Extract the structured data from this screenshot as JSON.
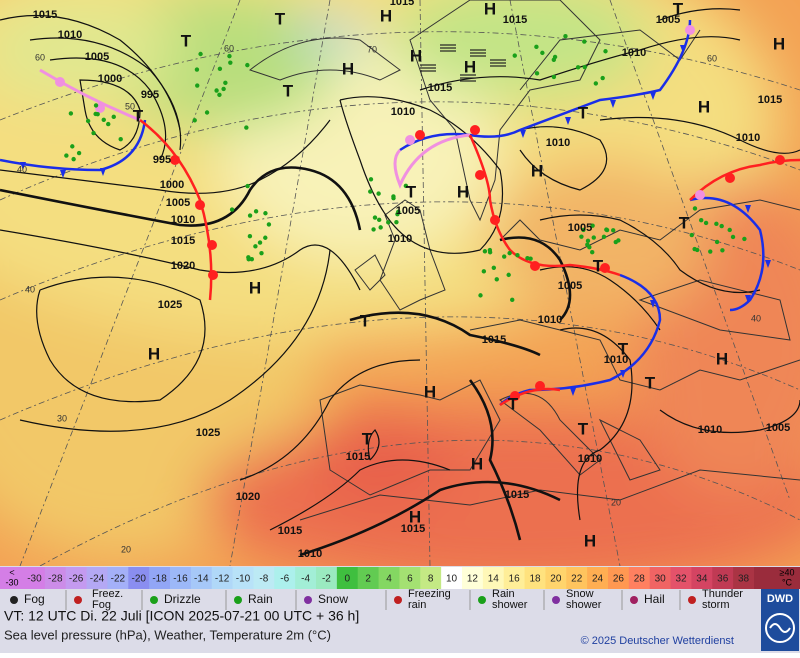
{
  "pressure_labels": [
    "1015",
    "1010",
    "1005",
    "1000",
    "995",
    "995",
    "1000",
    "1005",
    "1010",
    "1015",
    "1020",
    "1025",
    "1025",
    "1020",
    "1015",
    "1010",
    "1015",
    "1015",
    "1015",
    "1010",
    "1010",
    "1005",
    "1015",
    "1010",
    "1010",
    "1005",
    "1005",
    "1010",
    "1010",
    "1005",
    "1015",
    "1010",
    "1010",
    "1005",
    "1010",
    "1015",
    "1015",
    "1015"
  ],
  "system_labels": [
    "H",
    "H",
    "H",
    "H",
    "H",
    "T",
    "T",
    "T",
    "T",
    "H",
    "H",
    "T",
    "H",
    "H",
    "T",
    "H",
    "H",
    "T",
    "H",
    "T",
    "T",
    "T",
    "T",
    "H",
    "H",
    "T",
    "T",
    "T",
    "H",
    "H",
    "T"
  ],
  "latitude_labels": [
    "60",
    "60",
    "70",
    "60",
    "50",
    "40",
    "40",
    "30",
    "20",
    "40",
    "20"
  ],
  "scale": {
    "low_top": "<",
    "low_bottom": "-30",
    "values": [
      -30,
      -28,
      -26,
      -24,
      -22,
      -20,
      -18,
      -16,
      -14,
      -12,
      -10,
      -8,
      -6,
      -4,
      -2,
      0,
      2,
      4,
      6,
      8,
      10,
      12,
      14,
      16,
      18,
      20,
      22,
      24,
      26,
      28,
      30,
      32,
      34,
      36,
      38
    ],
    "colors": [
      "#d47ee6",
      "#cc8ce8",
      "#c49af0",
      "#b4a8f4",
      "#a4b0f8",
      "#8a8ef0",
      "#92a6f6",
      "#9cb8f8",
      "#a6c8f8",
      "#b0d8f8",
      "#b8e2f8",
      "#bceaf4",
      "#acf0ec",
      "#a2eed6",
      "#9aeac0",
      "#3fbf3f",
      "#62cb52",
      "#84d762",
      "#a4e172",
      "#c4e984",
      "#ffffff",
      "#ffffd8",
      "#fff8b8",
      "#ffee98",
      "#ffe27e",
      "#ffd46c",
      "#ffc45e",
      "#ffae52",
      "#ff9852",
      "#ff8060",
      "#f06464",
      "#e4526a",
      "#d44462",
      "#c03a54",
      "#aa3444"
    ],
    "high_top": "≥40",
    "high_bottom": "°C"
  },
  "legend": [
    [
      "Fog"
    ],
    [
      "Freez.",
      "Fog"
    ],
    [
      "Drizzle"
    ],
    [
      "Rain"
    ],
    [
      "Snow"
    ],
    [
      "Freezing",
      "rain"
    ],
    [
      "Rain",
      "shower"
    ],
    [
      "Snow",
      "shower"
    ],
    [
      "Hail"
    ],
    [
      "Thunder",
      "storm"
    ]
  ],
  "footer": {
    "valid_time": "VT: 12 UTC Di.  22 Juli [ICON 2025-07-21  00 UTC + 36 h]",
    "description": "Sea level pressure (hPa), Weather, Temperature 2m (°C)",
    "copyright": "© 2025 Deutscher Wetterdienst",
    "logo": "DWD"
  }
}
